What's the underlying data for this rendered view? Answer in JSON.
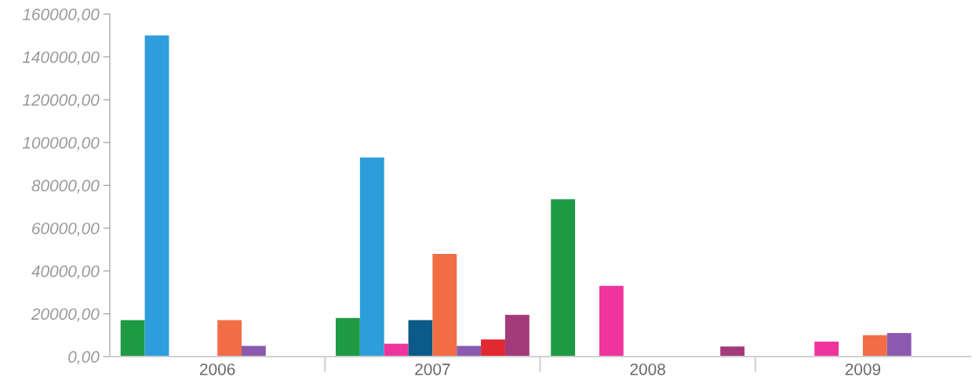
{
  "chart_data": {
    "type": "bar",
    "categories": [
      "2006",
      "2007",
      "2008",
      "2009"
    ],
    "series": [
      {
        "color": "#1e9a45",
        "values": [
          17000,
          18000,
          73500,
          null
        ]
      },
      {
        "color": "#2e9ddc",
        "values": [
          150000,
          93000,
          null,
          null
        ]
      },
      {
        "color": "#f0349e",
        "values": [
          null,
          6000,
          33000,
          7000
        ]
      },
      {
        "color": "#0b5a88",
        "values": [
          null,
          17000,
          null,
          null
        ]
      },
      {
        "color": "#f26d45",
        "values": [
          17000,
          48000,
          null,
          10000
        ]
      },
      {
        "color": "#8a5bb0",
        "values": [
          5000,
          5000,
          null,
          11000
        ]
      },
      {
        "color": "#e02a30",
        "values": [
          null,
          8000,
          null,
          null
        ]
      },
      {
        "color": "#a33a7a",
        "values": [
          null,
          19500,
          4700,
          null
        ]
      }
    ],
    "ylim": [
      0,
      160000
    ],
    "yticks": [
      {
        "value": 0,
        "label": "0,00"
      },
      {
        "value": 20000,
        "label": "20000,00"
      },
      {
        "value": 40000,
        "label": "40000,00"
      },
      {
        "value": 60000,
        "label": "60000,00"
      },
      {
        "value": 80000,
        "label": "80000,00"
      },
      {
        "value": 100000,
        "label": "100000,00"
      },
      {
        "value": 120000,
        "label": "120000,00"
      },
      {
        "value": 140000,
        "label": "140000,00"
      },
      {
        "value": 160000,
        "label": "160000,00"
      }
    ],
    "grid": false,
    "legend": false
  }
}
